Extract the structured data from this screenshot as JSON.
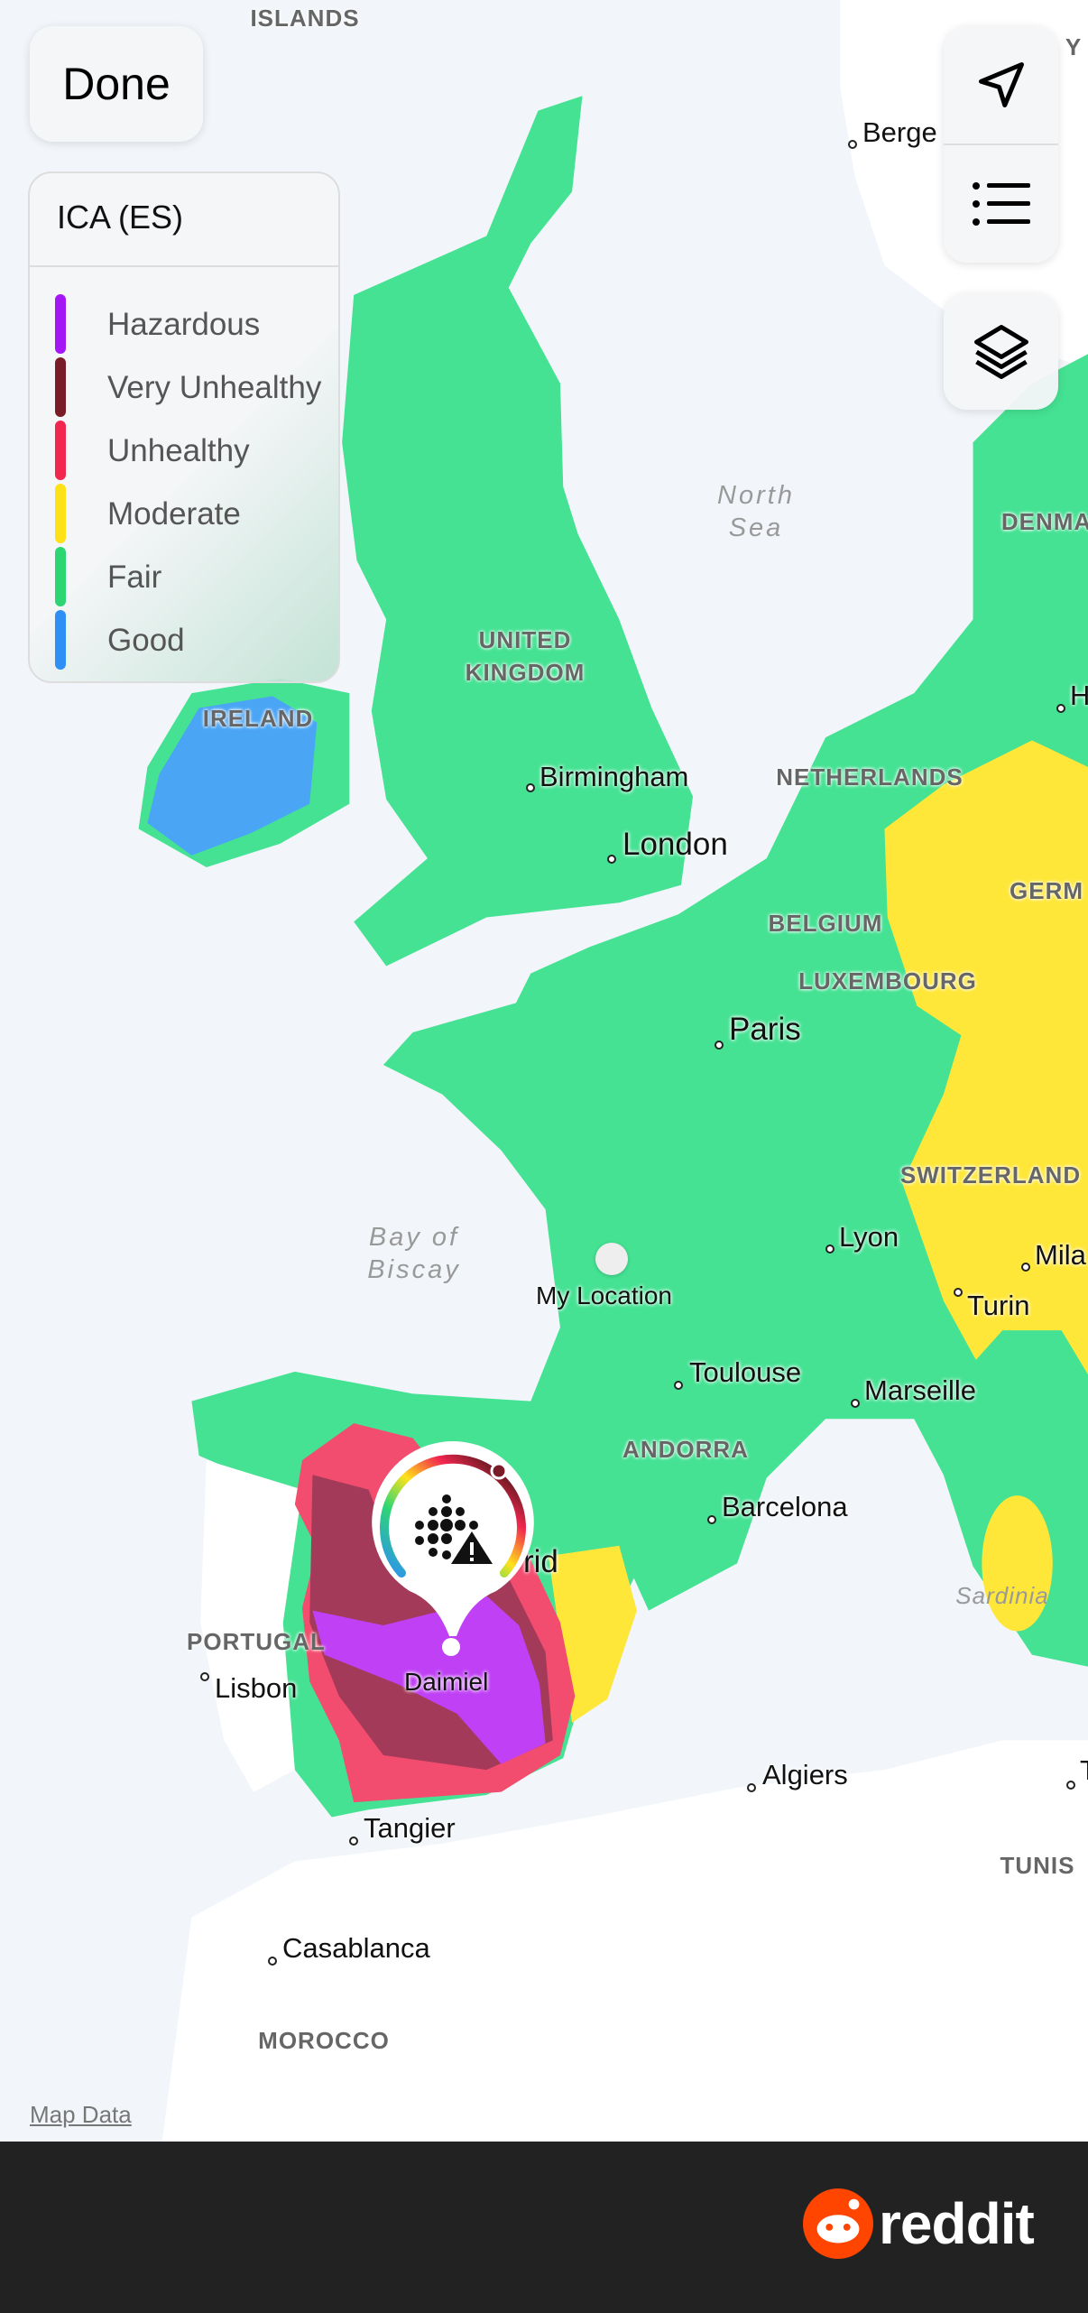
{
  "controls": {
    "done_label": "Done",
    "map_data_link": "Map Data"
  },
  "legend": {
    "title": "ICA (ES)",
    "items": [
      {
        "label": "Hazardous",
        "color": "#a516f5"
      },
      {
        "label": "Very Unhealthy",
        "color": "#7a1c28"
      },
      {
        "label": "Unhealthy",
        "color": "#f2274f"
      },
      {
        "label": "Moderate",
        "color": "#ffe11a"
      },
      {
        "label": "Fair",
        "color": "#2ed673"
      },
      {
        "label": "Good",
        "color": "#2e8ff5"
      }
    ]
  },
  "icons": {
    "location": "location-arrow-icon",
    "list": "list-icon",
    "layers": "layers-icon",
    "marker": "air-particles-warning-icon",
    "brand": "reddit-logo"
  },
  "map": {
    "cities": {
      "bergen": "Berge",
      "birmingham": "Birmingham",
      "london": "London",
      "paris": "Paris",
      "lyon": "Lyon",
      "milan": "Mila",
      "turin": "Turin",
      "toulouse": "Toulouse",
      "marseille": "Marseille",
      "barcelona": "Barcelona",
      "madrid": "rid",
      "lisbon": "Lisbon",
      "daimiel": "Daimiel",
      "algiers": "Algiers",
      "tangier": "Tangier",
      "casablanca": "Casablanca",
      "h": "H",
      "t": "T",
      "my_location": "My Location"
    },
    "countries": {
      "islands": "ISLANDS",
      "y": "Y",
      "denmark": "DENMA",
      "uk": "UNITED\nKINGDOM",
      "ireland": "IRELAND",
      "netherlands": "NETHERLANDS",
      "germany": "GERM",
      "belgium": "BELGIUM",
      "luxembourg": "LUXEMBOURG",
      "switzerland": "SWITZERLAND",
      "andorra": "ANDORRA",
      "portugal": "PORTUGAL",
      "tunisia": "TUNIS",
      "morocco": "MOROCCO"
    },
    "seas": {
      "north_sea": "North\nSea",
      "biscay": "Bay of\nBiscay",
      "sardinia": "Sardinia"
    }
  },
  "footer": {
    "brand": "reddit"
  }
}
